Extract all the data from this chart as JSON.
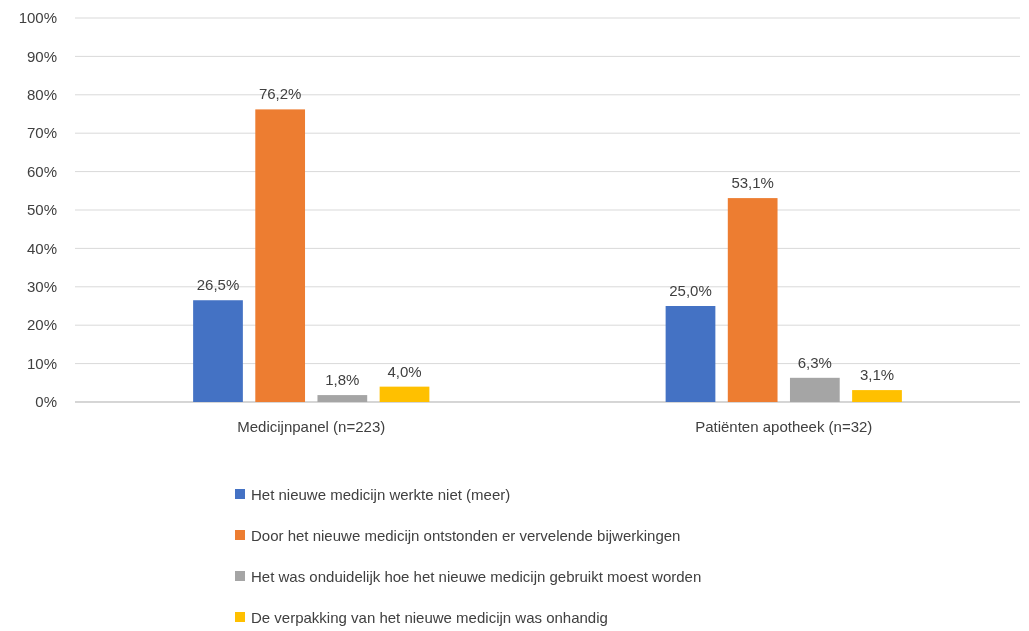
{
  "chart_data": {
    "type": "bar",
    "categories": [
      "Medicijnpanel (n=223)",
      "Patiënten apotheek (n=32)"
    ],
    "series": [
      {
        "name": "Het nieuwe medicijn werkte niet (meer)",
        "color": "#4472c4",
        "values": [
          26.5,
          25.0
        ],
        "value_labels": [
          "26,5%",
          "25,0%"
        ]
      },
      {
        "name": "Door het nieuwe medicijn ontstonden er vervelende bijwerkingen",
        "color": "#ed7d31",
        "values": [
          76.2,
          53.1
        ],
        "value_labels": [
          "76,2%",
          "53,1%"
        ]
      },
      {
        "name": "Het was onduidelijk hoe het nieuwe medicijn gebruikt moest worden",
        "color": "#a5a5a5",
        "values": [
          1.8,
          6.3
        ],
        "value_labels": [
          "1,8%",
          "6,3%"
        ]
      },
      {
        "name": "De verpakking van het nieuwe medicijn was onhandig",
        "color": "#ffc000",
        "values": [
          4.0,
          3.1
        ],
        "value_labels": [
          "4,0%",
          "3,1%"
        ]
      }
    ],
    "ylim": [
      0,
      100
    ],
    "yticks": [
      {
        "value": 0,
        "label": "0%"
      },
      {
        "value": 10,
        "label": "10%"
      },
      {
        "value": 20,
        "label": "20%"
      },
      {
        "value": 30,
        "label": "30%"
      },
      {
        "value": 40,
        "label": "40%"
      },
      {
        "value": 50,
        "label": "50%"
      },
      {
        "value": 60,
        "label": "60%"
      },
      {
        "value": 70,
        "label": "70%"
      },
      {
        "value": 80,
        "label": "80%"
      },
      {
        "value": 90,
        "label": "90%"
      },
      {
        "value": 100,
        "label": "100%"
      }
    ],
    "grid": "y",
    "legend": "bottom"
  }
}
